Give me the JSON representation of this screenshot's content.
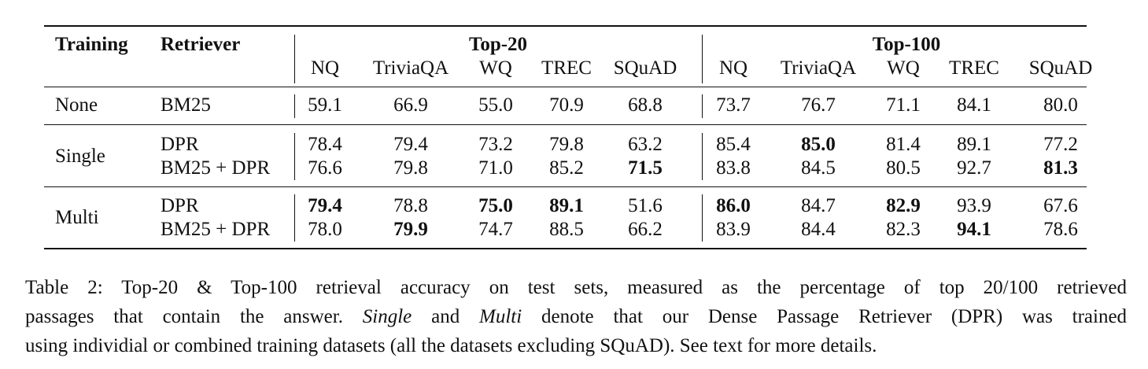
{
  "table": {
    "headers": {
      "training": "Training",
      "retriever": "Retriever",
      "group_top20": "Top-20",
      "group_top100": "Top-100",
      "datasets": [
        "NQ",
        "TriviaQA",
        "WQ",
        "TREC",
        "SQuAD"
      ]
    },
    "rows": [
      {
        "training": "None",
        "retriever": "BM25",
        "top20": [
          "59.1",
          "66.9",
          "55.0",
          "70.9",
          "68.8"
        ],
        "top100": [
          "73.7",
          "76.7",
          "71.1",
          "84.1",
          "80.0"
        ]
      },
      {
        "training": "Single",
        "retriever": "DPR",
        "top20": [
          "78.4",
          "79.4",
          "73.2",
          "79.8",
          "63.2"
        ],
        "top100": [
          "85.4",
          "85.0",
          "81.4",
          "89.1",
          "77.2"
        ]
      },
      {
        "training": "",
        "retriever": "BM25 + DPR",
        "top20": [
          "76.6",
          "79.8",
          "71.0",
          "85.2",
          "71.5"
        ],
        "top100": [
          "83.8",
          "84.5",
          "80.5",
          "92.7",
          "81.3"
        ]
      },
      {
        "training": "Multi",
        "retriever": "DPR",
        "top20": [
          "79.4",
          "78.8",
          "75.0",
          "89.1",
          "51.6"
        ],
        "top100": [
          "86.0",
          "84.7",
          "82.9",
          "93.9",
          "67.6"
        ]
      },
      {
        "training": "",
        "retriever": "BM25 + DPR",
        "top20": [
          "78.0",
          "79.9",
          "74.7",
          "88.5",
          "66.2"
        ],
        "top100": [
          "83.9",
          "84.4",
          "82.3",
          "94.1",
          "78.6"
        ]
      }
    ]
  },
  "caption": {
    "line1": "Table 2: Top-20 & Top-100 retrieval accuracy on test sets, measured as the percentage of top 20/100 retrieved",
    "line2_a": "passages that contain the answer.",
    "line2_single": "Single",
    "line2_b": "and",
    "line2_multi": "Multi",
    "line2_c": "denote that our Dense Passage Retriever (DPR) was trained",
    "line3": "using individial or combined training datasets (all the datasets excluding SQuAD). See text for more details."
  }
}
